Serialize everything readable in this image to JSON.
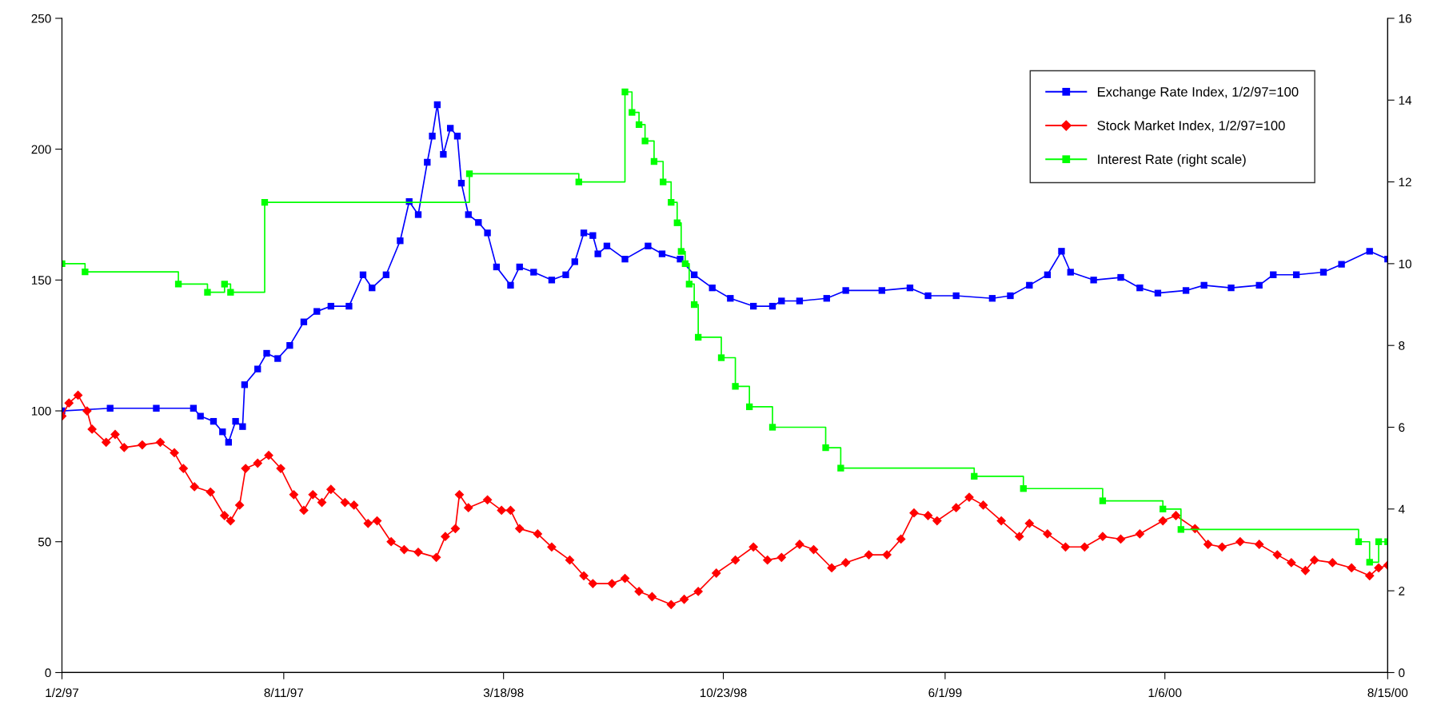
{
  "chart_data": {
    "type": "line",
    "xlim": [
      "1997-01-02",
      "2000-08-15"
    ],
    "xticks": [
      {
        "value": "1997-01-02",
        "label": "1/2/97"
      },
      {
        "value": "1997-08-11",
        "label": "8/11/97"
      },
      {
        "value": "1998-03-18",
        "label": "3/18/98"
      },
      {
        "value": "1998-10-23",
        "label": "10/23/98"
      },
      {
        "value": "1999-06-01",
        "label": "6/1/99"
      },
      {
        "value": "2000-01-06",
        "label": "1/6/00"
      },
      {
        "value": "2000-08-15",
        "label": "8/15/00"
      }
    ],
    "ylim": [
      0,
      250
    ],
    "yticks": [
      0,
      50,
      100,
      150,
      200,
      250
    ],
    "y2lim": [
      0,
      16
    ],
    "y2ticks": [
      0,
      2,
      4,
      6,
      8,
      10,
      12,
      14,
      16
    ],
    "grid": false,
    "legend": "top right",
    "series": [
      {
        "name": "Exchange Rate Index, 1/2/97=100",
        "color": "#0000ff",
        "marker": "square",
        "x": [
          "1997-01-02",
          "1997-02-19",
          "1997-04-06",
          "1997-05-13",
          "1997-05-20",
          "1997-06-02",
          "1997-06-11",
          "1997-06-17",
          "1997-06-24",
          "1997-07-01",
          "1997-07-03",
          "1997-07-16",
          "1997-07-25",
          "1997-08-05",
          "1997-08-17",
          "1997-08-31",
          "1997-09-13",
          "1997-09-27",
          "1997-10-15",
          "1997-10-29",
          "1997-11-07",
          "1997-11-21",
          "1997-12-05",
          "1997-12-14",
          "1997-12-23",
          "1998-01-01",
          "1998-01-06",
          "1998-01-11",
          "1998-01-17",
          "1998-01-24",
          "1998-01-31",
          "1998-02-04",
          "1998-02-11",
          "1998-02-21",
          "1998-03-02",
          "1998-03-11",
          "1998-03-25",
          "1998-04-03",
          "1998-04-17",
          "1998-05-05",
          "1998-05-19",
          "1998-05-28",
          "1998-06-06",
          "1998-06-15",
          "1998-06-20",
          "1998-06-29",
          "1998-07-17",
          "1998-08-09",
          "1998-08-23",
          "1998-09-10",
          "1998-09-24",
          "1998-10-12",
          "1998-10-30",
          "1998-11-22",
          "1998-12-11",
          "1998-12-20",
          "1999-01-07",
          "1999-02-03",
          "1999-02-22",
          "1999-03-30",
          "1999-04-27",
          "1999-05-15",
          "1999-06-12",
          "1999-07-18",
          "1999-08-05",
          "1999-08-24",
          "1999-09-11",
          "1999-09-25",
          "1999-10-04",
          "1999-10-27",
          "1999-11-23",
          "1999-12-12",
          "1999-12-30",
          "2000-01-27",
          "2000-02-14",
          "2000-03-12",
          "2000-04-09",
          "2000-04-23",
          "2000-05-16",
          "2000-06-12",
          "2000-06-30",
          "2000-07-28",
          "2000-08-15"
        ],
        "values": [
          100,
          101,
          101,
          101,
          98,
          96,
          92,
          88,
          96,
          94,
          110,
          116,
          122,
          120,
          125,
          134,
          138,
          140,
          140,
          152,
          147,
          152,
          165,
          180,
          175,
          195,
          205,
          217,
          198,
          208,
          205,
          187,
          175,
          172,
          168,
          155,
          148,
          155,
          153,
          150,
          152,
          157,
          168,
          167,
          160,
          163,
          158,
          163,
          160,
          158,
          152,
          147,
          143,
          140,
          140,
          142,
          142,
          143,
          146,
          146,
          147,
          144,
          144,
          143,
          144,
          148,
          152,
          161,
          153,
          150,
          151,
          147,
          145,
          146,
          148,
          147,
          148,
          152,
          152,
          153,
          156,
          161,
          158
        ]
      },
      {
        "name": "Stock Market Index, 1/2/97=100",
        "color": "#ff0000",
        "marker": "diamond",
        "x": [
          "1997-01-02",
          "1997-01-09",
          "1997-01-18",
          "1997-01-27",
          "1997-02-01",
          "1997-02-15",
          "1997-02-24",
          "1997-03-05",
          "1997-03-23",
          "1997-04-10",
          "1997-04-24",
          "1997-05-03",
          "1997-05-14",
          "1997-05-30",
          "1997-06-13",
          "1997-06-19",
          "1997-06-28",
          "1997-07-04",
          "1997-07-16",
          "1997-07-27",
          "1997-08-08",
          "1997-08-21",
          "1997-08-31",
          "1997-09-09",
          "1997-09-18",
          "1997-09-27",
          "1997-10-11",
          "1997-10-20",
          "1997-11-03",
          "1997-11-12",
          "1997-11-26",
          "1997-12-09",
          "1997-12-23",
          "1998-01-10",
          "1998-01-19",
          "1998-01-29",
          "1998-02-02",
          "1998-02-11",
          "1998-03-02",
          "1998-03-16",
          "1998-03-25",
          "1998-04-03",
          "1998-04-21",
          "1998-05-05",
          "1998-05-23",
          "1998-06-06",
          "1998-06-15",
          "1998-07-04",
          "1998-07-17",
          "1998-07-31",
          "1998-08-13",
          "1998-09-01",
          "1998-09-14",
          "1998-09-28",
          "1998-10-16",
          "1998-11-04",
          "1998-11-22",
          "1998-12-06",
          "1998-12-20",
          "1999-01-07",
          "1999-01-21",
          "1999-02-08",
          "1999-02-22",
          "1999-03-17",
          "1999-04-04",
          "1999-04-18",
          "1999-05-01",
          "1999-05-15",
          "1999-05-24",
          "1999-06-12",
          "1999-06-25",
          "1999-07-09",
          "1999-07-27",
          "1999-08-14",
          "1999-08-24",
          "1999-09-11",
          "1999-09-29",
          "1999-10-18",
          "1999-11-05",
          "1999-11-23",
          "1999-12-12",
          "2000-01-04",
          "2000-01-17",
          "2000-02-05",
          "2000-02-18",
          "2000-03-03",
          "2000-03-21",
          "2000-04-09",
          "2000-04-27",
          "2000-05-11",
          "2000-05-25",
          "2000-06-03",
          "2000-06-21",
          "2000-07-10",
          "2000-07-28",
          "2000-08-06",
          "2000-08-15"
        ],
        "values": [
          98,
          103,
          106,
          100,
          93,
          88,
          91,
          86,
          87,
          88,
          84,
          78,
          71,
          69,
          60,
          58,
          64,
          78,
          80,
          83,
          78,
          68,
          62,
          68,
          65,
          70,
          65,
          64,
          57,
          58,
          50,
          47,
          46,
          44,
          52,
          55,
          68,
          63,
          66,
          62,
          62,
          55,
          53,
          48,
          43,
          37,
          34,
          34,
          36,
          31,
          29,
          26,
          28,
          31,
          38,
          43,
          48,
          43,
          44,
          49,
          47,
          40,
          42,
          45,
          45,
          51,
          61,
          60,
          58,
          63,
          67,
          64,
          58,
          52,
          57,
          53,
          48,
          48,
          52,
          51,
          53,
          58,
          60,
          55,
          49,
          48,
          50,
          49,
          45,
          42,
          39,
          43,
          42,
          40,
          37,
          40,
          41
        ]
      },
      {
        "name": "Interest Rate (right scale)",
        "color": "#00ff00",
        "type": "step",
        "marker": "square",
        "axis": "y2",
        "x": [
          "1997-01-02",
          "1997-01-25",
          "1997-04-28",
          "1997-05-27",
          "1997-06-13",
          "1997-06-19",
          "1997-07-23",
          "1998-02-12",
          "1998-06-01",
          "1998-07-17",
          "1998-07-24",
          "1998-07-31",
          "1998-08-06",
          "1998-08-15",
          "1998-08-24",
          "1998-09-01",
          "1998-09-07",
          "1998-09-11",
          "1998-09-15",
          "1998-09-19",
          "1998-09-24",
          "1998-09-28",
          "1998-10-21",
          "1998-11-04",
          "1998-11-18",
          "1998-12-11",
          "1999-02-02",
          "1999-02-17",
          "1999-06-30",
          "1999-08-18",
          "1999-11-05",
          "2000-01-04",
          "2000-01-22",
          "2000-07-17",
          "2000-07-28",
          "2000-08-06",
          "2000-08-15"
        ],
        "values": [
          10.0,
          9.8,
          9.5,
          9.3,
          9.5,
          9.3,
          11.5,
          12.2,
          12.0,
          14.2,
          13.7,
          13.4,
          13.0,
          12.5,
          12.0,
          11.5,
          11.0,
          10.3,
          10.0,
          9.5,
          9.0,
          8.2,
          7.7,
          7.0,
          6.5,
          6.0,
          5.5,
          5.0,
          4.8,
          4.5,
          4.2,
          4.0,
          3.5,
          3.2,
          2.7,
          3.2,
          3.2
        ]
      }
    ]
  }
}
